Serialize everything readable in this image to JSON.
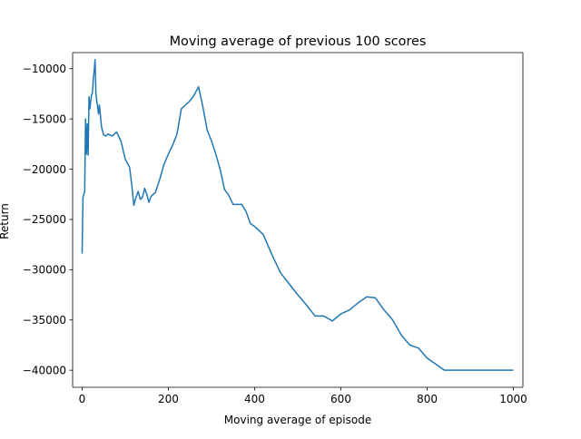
{
  "chart_data": {
    "type": "line",
    "title": "Moving average of previous 100 scores",
    "xlabel": "Moving average of episode",
    "ylabel": "Return",
    "xlim": [
      -22,
      1022
    ],
    "ylim": [
      -41700,
      -8400
    ],
    "xticks": [
      0,
      200,
      400,
      600,
      800,
      1000
    ],
    "xtick_labels": [
      "0",
      "200",
      "400",
      "600",
      "800",
      "1000"
    ],
    "yticks": [
      -40000,
      -35000,
      -30000,
      -25000,
      -20000,
      -15000,
      -10000
    ],
    "ytick_labels": [
      "−40000",
      "−35000",
      "−30000",
      "−25000",
      "−20000",
      "−15000",
      "−10000"
    ],
    "grid": false,
    "series": [
      {
        "color": "#1f77b4",
        "x": [
          0,
          2,
          4,
          6,
          8,
          10,
          12,
          14,
          16,
          18,
          20,
          22,
          24,
          26,
          28,
          30,
          32,
          34,
          36,
          38,
          40,
          45,
          50,
          55,
          60,
          70,
          80,
          90,
          100,
          110,
          115,
          120,
          125,
          130,
          135,
          140,
          145,
          150,
          155,
          160,
          170,
          180,
          190,
          200,
          210,
          220,
          230,
          240,
          250,
          260,
          270,
          280,
          290,
          300,
          310,
          320,
          330,
          340,
          350,
          360,
          370,
          380,
          390,
          400,
          420,
          440,
          460,
          480,
          500,
          520,
          540,
          560,
          580,
          600,
          620,
          640,
          660,
          680,
          700,
          720,
          740,
          760,
          780,
          800,
          820,
          840,
          860,
          880,
          900,
          920,
          940,
          960,
          980,
          1000
        ],
        "y": [
          -28400,
          -22800,
          -22500,
          -22200,
          -15000,
          -18500,
          -15500,
          -18600,
          -12800,
          -14000,
          -13200,
          -12600,
          -12400,
          -11000,
          -10200,
          -9100,
          -12500,
          -13200,
          -13800,
          -14500,
          -13600,
          -15800,
          -16600,
          -16700,
          -16500,
          -16700,
          -16300,
          -17200,
          -19000,
          -19800,
          -21500,
          -23600,
          -22800,
          -22200,
          -23000,
          -22800,
          -21900,
          -22500,
          -23300,
          -22700,
          -22300,
          -21000,
          -19500,
          -18500,
          -17600,
          -16500,
          -14000,
          -13600,
          -13200,
          -12600,
          -11800,
          -13800,
          -16100,
          -17200,
          -18500,
          -20000,
          -22000,
          -22600,
          -23500,
          -23500,
          -23500,
          -24200,
          -25400,
          -25700,
          -26500,
          -28500,
          -30300,
          -31400,
          -32500,
          -33500,
          -34600,
          -34600,
          -35100,
          -34400,
          -34000,
          -33300,
          -32700,
          -32800,
          -34000,
          -35000,
          -36500,
          -37500,
          -37800,
          -38800,
          -39400,
          -40000,
          -40000,
          -40000,
          -40000,
          -40000,
          -40000,
          -40000,
          -40000,
          -40000
        ]
      }
    ]
  }
}
